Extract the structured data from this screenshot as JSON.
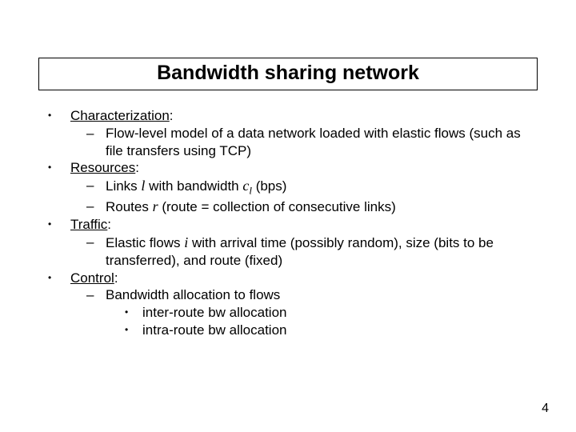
{
  "slide": {
    "title": "Bandwidth sharing network",
    "page_number": "4",
    "bullets": {
      "characterization": {
        "label": "Characterization",
        "sub1": "Flow-level model of a data network loaded with elastic flows (such as file transfers using TCP)"
      },
      "resources": {
        "label": "Resources",
        "sub1_pre": "Links ",
        "sub1_var": "l",
        "sub1_mid": " with bandwidth ",
        "sub1_c": "c",
        "sub1_csub": "l",
        "sub1_post": " (bps)",
        "sub2_pre": "Routes ",
        "sub2_var": "r",
        "sub2_post": " (route = collection of consecutive links)"
      },
      "traffic": {
        "label": "Traffic",
        "sub1_pre": "Elastic flows ",
        "sub1_var": "i",
        "sub1_post": " with arrival time (possibly random), size (bits to be transferred), and route (fixed)"
      },
      "control": {
        "label": "Control",
        "sub1": "Bandwidth allocation to flows",
        "sub1a": "inter-route bw allocation",
        "sub1b": "intra-route bw allocation"
      }
    },
    "colors": {
      "text": "#000000",
      "background": "#ffffff",
      "border": "#000000"
    }
  }
}
